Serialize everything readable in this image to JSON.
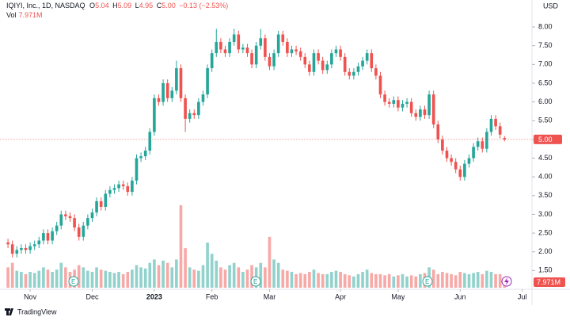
{
  "header": {
    "symbol": "IQIYI, Inc., 1D, NASDAQ",
    "ohlc": [
      {
        "key": "O",
        "value": "5.04"
      },
      {
        "key": "H",
        "value": "5.09"
      },
      {
        "key": "L",
        "value": "4.95"
      },
      {
        "key": "C",
        "value": "5.00"
      }
    ],
    "change": "−0.13 (−2.53%)",
    "vol_key": "Vol",
    "vol_value": "7.971M"
  },
  "footer": {
    "brand": "TradingView"
  },
  "chart_data": {
    "type": "candlestick",
    "currency": "USD",
    "up_color": "#26a69a",
    "down_color": "#ef5350",
    "open": [
      2.25,
      2.2,
      1.95,
      2.05,
      2.1,
      2.05,
      2.15,
      2.2,
      2.3,
      2.5,
      2.3,
      2.55,
      2.7,
      3.0,
      2.95,
      2.9,
      2.65,
      2.4,
      2.7,
      2.9,
      3.05,
      3.35,
      3.2,
      3.55,
      3.65,
      3.7,
      3.8,
      3.75,
      3.6,
      3.9,
      4.5,
      4.55,
      4.7,
      5.2,
      6.1,
      6.0,
      6.5,
      6.1,
      6.3,
      6.9,
      6.1,
      5.55,
      5.7,
      5.65,
      6.0,
      6.2,
      6.9,
      7.3,
      7.6,
      7.4,
      7.3,
      7.6,
      7.8,
      7.4,
      7.45,
      7.3,
      7.0,
      7.5,
      7.7,
      7.2,
      6.95,
      7.3,
      7.8,
      7.6,
      7.3,
      7.4,
      7.35,
      7.2,
      7.0,
      6.8,
      7.3,
      7.1,
      6.85,
      7.0,
      7.3,
      7.4,
      7.2,
      6.8,
      6.7,
      6.8,
      6.95,
      7.1,
      7.3,
      6.9,
      6.7,
      6.2,
      6.0,
      5.95,
      6.05,
      5.85,
      5.95,
      6.0,
      5.7,
      5.6,
      5.8,
      5.65,
      6.2,
      5.4,
      5.0,
      4.7,
      4.5,
      4.4,
      4.2,
      4.0,
      4.35,
      4.5,
      4.8,
      4.95,
      4.75,
      5.2,
      5.55,
      5.35,
      5.04
    ],
    "high": [
      2.35,
      2.3,
      2.15,
      2.2,
      2.2,
      2.25,
      2.3,
      2.4,
      2.6,
      2.6,
      2.65,
      2.8,
      3.1,
      3.1,
      3.05,
      3.0,
      2.75,
      2.8,
      3.0,
      3.15,
      3.45,
      3.45,
      3.65,
      3.75,
      3.8,
      3.9,
      3.9,
      3.85,
      4.0,
      4.6,
      4.65,
      4.8,
      5.3,
      6.2,
      6.2,
      6.6,
      6.6,
      6.4,
      7.1,
      7.0,
      6.2,
      5.8,
      5.8,
      6.1,
      6.3,
      7.0,
      7.4,
      7.95,
      7.7,
      7.5,
      7.7,
      7.95,
      7.9,
      7.55,
      7.55,
      7.4,
      7.6,
      7.95,
      7.8,
      7.3,
      7.4,
      7.9,
      7.9,
      7.7,
      7.5,
      7.5,
      7.45,
      7.3,
      7.1,
      7.4,
      7.4,
      7.2,
      7.1,
      7.4,
      7.5,
      7.5,
      7.3,
      6.9,
      6.9,
      7.05,
      7.2,
      7.4,
      7.4,
      7.0,
      6.8,
      6.3,
      6.1,
      6.15,
      6.15,
      6.05,
      6.1,
      6.1,
      5.8,
      5.9,
      5.9,
      6.3,
      6.3,
      5.5,
      5.1,
      4.8,
      4.6,
      4.5,
      4.3,
      4.45,
      4.6,
      4.9,
      5.05,
      5.05,
      5.3,
      5.65,
      5.65,
      5.45,
      5.09
    ],
    "low": [
      2.1,
      1.85,
      1.85,
      1.95,
      1.95,
      1.95,
      2.05,
      2.1,
      2.2,
      2.2,
      2.2,
      2.45,
      2.6,
      2.85,
      2.8,
      2.55,
      2.3,
      2.3,
      2.6,
      2.8,
      2.95,
      3.1,
      3.1,
      3.45,
      3.55,
      3.6,
      3.65,
      3.5,
      3.5,
      3.8,
      4.4,
      4.45,
      4.6,
      5.1,
      5.9,
      5.9,
      6.0,
      6.0,
      6.2,
      6.0,
      5.2,
      5.45,
      5.55,
      5.55,
      5.9,
      6.1,
      6.8,
      7.2,
      7.3,
      7.2,
      7.2,
      7.5,
      7.3,
      7.3,
      7.2,
      6.9,
      6.9,
      7.4,
      7.1,
      6.85,
      6.85,
      7.2,
      7.5,
      7.2,
      7.2,
      7.25,
      7.1,
      6.9,
      6.7,
      6.7,
      7.0,
      6.75,
      6.75,
      6.9,
      7.2,
      7.1,
      6.7,
      6.6,
      6.6,
      6.7,
      6.85,
      7.0,
      6.8,
      6.6,
      6.1,
      5.9,
      5.85,
      5.85,
      5.75,
      5.75,
      5.85,
      5.6,
      5.5,
      5.5,
      5.55,
      5.55,
      5.3,
      4.9,
      4.6,
      4.4,
      4.3,
      4.1,
      3.9,
      3.9,
      4.25,
      4.4,
      4.7,
      4.65,
      4.65,
      5.1,
      5.25,
      5.03,
      4.95
    ],
    "close": [
      2.2,
      1.95,
      2.05,
      2.1,
      2.05,
      2.15,
      2.2,
      2.3,
      2.5,
      2.3,
      2.55,
      2.7,
      3.0,
      2.95,
      2.9,
      2.65,
      2.4,
      2.7,
      2.9,
      3.05,
      3.35,
      3.2,
      3.55,
      3.65,
      3.7,
      3.8,
      3.75,
      3.6,
      3.9,
      4.5,
      4.55,
      4.7,
      5.2,
      6.1,
      6.0,
      6.5,
      6.1,
      6.3,
      6.9,
      6.1,
      5.55,
      5.7,
      5.65,
      6.0,
      6.2,
      6.9,
      7.3,
      7.6,
      7.4,
      7.3,
      7.6,
      7.8,
      7.4,
      7.45,
      7.3,
      7.0,
      7.5,
      7.7,
      7.2,
      6.95,
      7.3,
      7.8,
      7.6,
      7.3,
      7.4,
      7.35,
      7.2,
      7.0,
      6.8,
      7.3,
      7.1,
      6.85,
      7.0,
      7.3,
      7.4,
      7.2,
      6.8,
      6.7,
      6.8,
      6.95,
      7.1,
      7.3,
      6.9,
      6.7,
      6.2,
      6.0,
      5.95,
      6.05,
      5.85,
      5.95,
      6.0,
      5.7,
      5.6,
      5.8,
      5.65,
      6.2,
      5.4,
      5.0,
      4.7,
      4.5,
      4.4,
      4.2,
      4.0,
      4.35,
      4.5,
      4.8,
      4.95,
      4.75,
      5.2,
      5.55,
      5.35,
      5.13,
      5.0
    ],
    "volume": [
      18,
      22,
      15,
      14,
      12,
      14,
      13,
      15,
      18,
      16,
      14,
      16,
      22,
      18,
      14,
      16,
      20,
      18,
      15,
      14,
      18,
      16,
      15,
      14,
      13,
      14,
      12,
      14,
      16,
      20,
      18,
      17,
      22,
      25,
      20,
      24,
      22,
      18,
      25,
      73,
      35,
      18,
      16,
      15,
      20,
      40,
      30,
      24,
      18,
      16,
      20,
      22,
      18,
      14,
      16,
      20,
      18,
      22,
      18,
      45,
      25,
      22,
      16,
      15,
      14,
      12,
      13,
      12,
      14,
      16,
      13,
      12,
      12,
      14,
      15,
      14,
      12,
      11,
      10,
      12,
      14,
      16,
      13,
      12,
      12,
      11,
      12,
      10,
      11,
      12,
      10,
      11,
      10,
      12,
      13,
      18,
      16,
      12,
      14,
      13,
      12,
      11,
      14,
      13,
      12,
      13,
      14,
      12,
      15,
      14,
      12,
      12,
      7.971
    ],
    "vlim": [
      0,
      80
    ],
    "last_price_label": "5.00",
    "xlim": [
      -1.8,
      118.2
    ],
    "xticks": [
      {
        "value": 5,
        "label": "Nov"
      },
      {
        "value": 19,
        "label": "Dec"
      },
      {
        "value": 33,
        "label": "2023"
      },
      {
        "value": 46,
        "label": "Feb"
      },
      {
        "value": 59,
        "label": "Mar"
      },
      {
        "value": 75,
        "label": "Apr"
      },
      {
        "value": 88,
        "label": "May"
      },
      {
        "value": 102,
        "label": "Jun"
      },
      {
        "value": 116,
        "label": "Jul"
      }
    ],
    "ylim": [
      1.0,
      8.72
    ],
    "yticks": [
      {
        "value": 1.5,
        "label": "1.50"
      },
      {
        "value": 2.0,
        "label": "2.00"
      },
      {
        "value": 2.5,
        "label": "2.50"
      },
      {
        "value": 3.0,
        "label": "3.00"
      },
      {
        "value": 3.5,
        "label": "3.50"
      },
      {
        "value": 4.0,
        "label": "4.00"
      },
      {
        "value": 4.5,
        "label": "4.50"
      },
      {
        "value": 5.0,
        "label": "5.00"
      },
      {
        "value": 5.5,
        "label": "5.50"
      },
      {
        "value": 6.0,
        "label": "6.00"
      },
      {
        "value": 6.5,
        "label": "6.50"
      },
      {
        "value": 7.0,
        "label": "7.00"
      },
      {
        "value": 7.5,
        "label": "7.50"
      },
      {
        "value": 8.0,
        "label": "8.00"
      }
    ]
  }
}
